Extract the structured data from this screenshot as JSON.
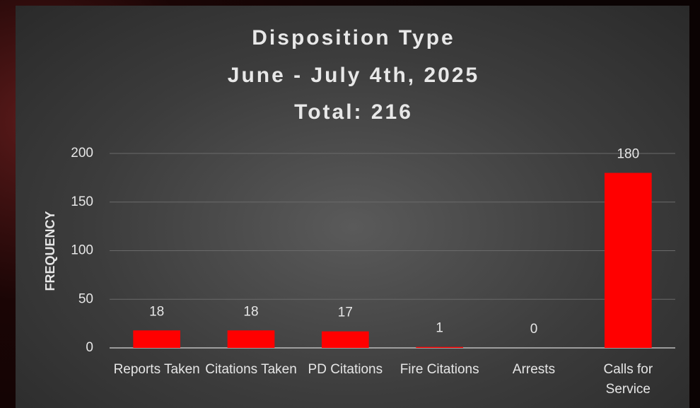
{
  "chart_data": {
    "type": "bar",
    "title": [
      "Disposition Type",
      "June - July 4th, 2025",
      "Total: 216"
    ],
    "y_label": "FREQUENCY",
    "categories": [
      "Reports Taken",
      "Citations Taken",
      "PD Citations",
      "Fire Citations",
      "Arrests",
      "Calls for Service"
    ],
    "values": [
      18,
      18,
      17,
      1,
      0,
      180
    ],
    "color": "#ff0000",
    "ylim": [
      0,
      200
    ],
    "yticks": [
      0,
      50,
      100,
      150,
      200
    ],
    "grid": true
  }
}
